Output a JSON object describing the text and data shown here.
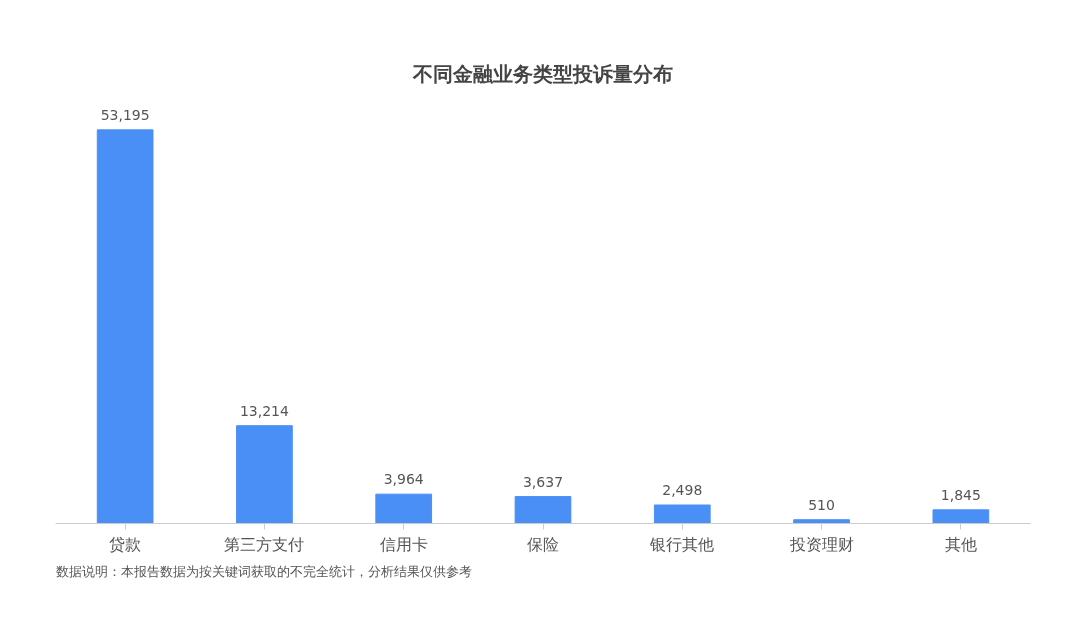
{
  "chart_data": {
    "type": "bar",
    "title": "不同金融业务类型投诉量分布",
    "categories": [
      "贷款",
      "第三方支付",
      "信用卡",
      "保险",
      "银行其他",
      "投资理财",
      "其他"
    ],
    "values": [
      53195,
      13214,
      3964,
      3637,
      2498,
      510,
      1845
    ],
    "value_labels": [
      "53,195",
      "13,214",
      "3,964",
      "3,637",
      "2,498",
      "510",
      "1,845"
    ],
    "color": "#4a8ff5",
    "grid": false,
    "tick_labels": "x",
    "annotations": [
      "数据说明：本报告数据为按关键词获取的不完全统计，分析结果仅供参考"
    ]
  }
}
